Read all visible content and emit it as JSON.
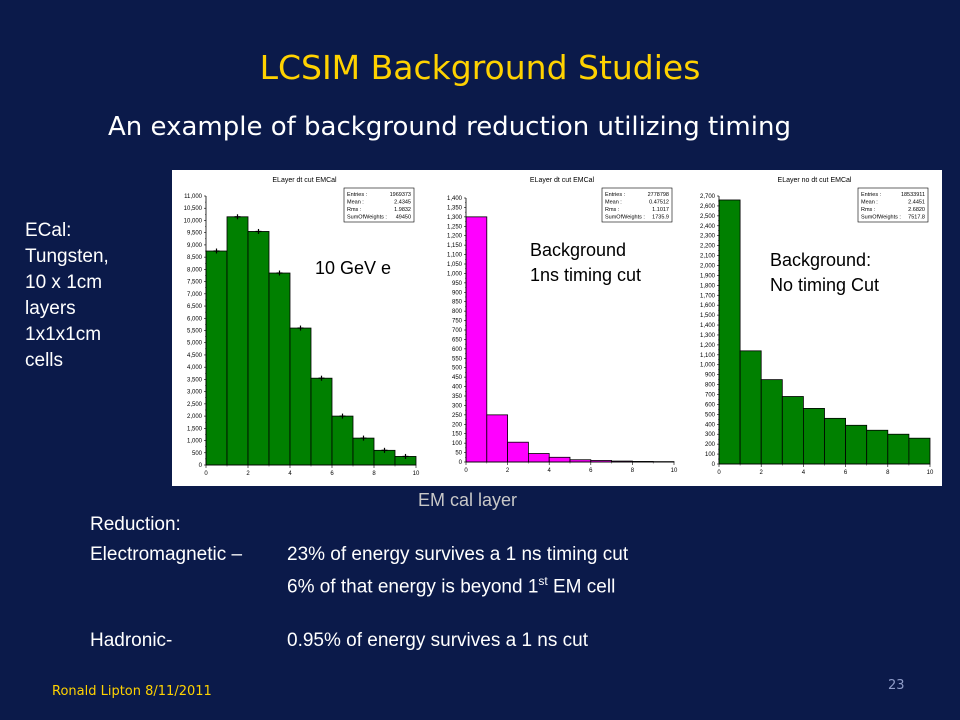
{
  "title": "LCSIM Background Studies",
  "subtitle": "An example of background reduction utilizing timing",
  "ecal_note": [
    "ECal:",
    "Tungsten,",
    "10 x 1cm",
    "layers",
    "1x1x1cm",
    "cells"
  ],
  "x_axis_label": "EM cal layer",
  "reduction": {
    "heading": "Reduction:",
    "em_label": "Electromagnetic –",
    "em_line1": "23% of energy survives a 1 ns timing cut",
    "em_line2_pre": "6% of that energy is beyond 1",
    "em_line2_sup": "st",
    "em_line2_post": " EM cell",
    "had_label": "Hadronic-",
    "had_line": "0.95% of energy survives a 1 ns cut"
  },
  "footer": "Ronald Lipton 8/11/2011",
  "page_number": "23",
  "colors": {
    "background": "#0b1a4a",
    "title": "#ffd200",
    "green_bar": "#008000",
    "magenta_bar": "#ff00ff"
  },
  "chart_data": [
    {
      "type": "bar",
      "title": "ELayer dt cut EMCal",
      "overlay_label": "10 GeV e",
      "bar_color": "#008000",
      "bin_edges": [
        0,
        1,
        2,
        3,
        4,
        5,
        6,
        7,
        8,
        9,
        10
      ],
      "values": [
        8750,
        10150,
        9550,
        7850,
        5600,
        3550,
        2000,
        1100,
        600,
        350
      ],
      "ylim": [
        0,
        11000
      ],
      "y_ticks": [
        "0",
        "500",
        "1,000",
        "1,500",
        "2,000",
        "2,500",
        "3,000",
        "3,500",
        "4,000",
        "4,500",
        "5,000",
        "5,500",
        "6,000",
        "6,500",
        "7,000",
        "7,500",
        "8,000",
        "8,500",
        "9,000",
        "9,500",
        "10,000",
        "10,500",
        "11,000"
      ],
      "y_tick_values": [
        0,
        500,
        1000,
        1500,
        2000,
        2500,
        3000,
        3500,
        4000,
        4500,
        5000,
        5500,
        6000,
        6500,
        7000,
        7500,
        8000,
        8500,
        9000,
        9500,
        10000,
        10500,
        11000
      ],
      "x_ticks": [
        "0",
        "2",
        "4",
        "6",
        "8",
        "10"
      ],
      "x_tick_values": [
        0,
        2,
        4,
        6,
        8,
        10
      ],
      "error_bars": true,
      "stats": [
        {
          "label": "Entries :",
          "value": "1969373"
        },
        {
          "label": "Mean :",
          "value": "2.4345"
        },
        {
          "label": "Rms :",
          "value": "1.9832"
        },
        {
          "label": "SumOfWeights :",
          "value": "49450"
        }
      ]
    },
    {
      "type": "bar",
      "title": "ELayer dt cut EMCal",
      "overlay_label": [
        "Background",
        "1ns timing cut"
      ],
      "bar_color": "#ff00ff",
      "bin_edges": [
        0,
        1,
        2,
        3,
        4,
        5,
        6,
        7,
        8,
        9,
        10
      ],
      "values": [
        1300,
        250,
        105,
        45,
        25,
        12,
        8,
        5,
        3,
        2
      ],
      "ylim": [
        0,
        1400
      ],
      "y_ticks": [
        "0",
        "50",
        "100",
        "150",
        "200",
        "250",
        "300",
        "350",
        "400",
        "450",
        "500",
        "550",
        "600",
        "650",
        "700",
        "750",
        "800",
        "850",
        "900",
        "950",
        "1,000",
        "1,050",
        "1,100",
        "1,150",
        "1,200",
        "1,250",
        "1,300",
        "1,350",
        "1,400"
      ],
      "y_tick_values": [
        0,
        50,
        100,
        150,
        200,
        250,
        300,
        350,
        400,
        450,
        500,
        550,
        600,
        650,
        700,
        750,
        800,
        850,
        900,
        950,
        1000,
        1050,
        1100,
        1150,
        1200,
        1250,
        1300,
        1350,
        1400
      ],
      "x_ticks": [
        "0",
        "2",
        "4",
        "6",
        "8",
        "10"
      ],
      "x_tick_values": [
        0,
        2,
        4,
        6,
        8,
        10
      ],
      "error_bars": false,
      "stats": [
        {
          "label": "Entries :",
          "value": "2778798"
        },
        {
          "label": "Mean :",
          "value": "0.47512"
        },
        {
          "label": "Rms :",
          "value": "1.1017"
        },
        {
          "label": "SumOfWeights :",
          "value": "1735.9"
        }
      ]
    },
    {
      "type": "bar",
      "title": "ELayer no dt cut EMCal",
      "overlay_label": [
        "Background:",
        "No timing Cut"
      ],
      "bar_color": "#008000",
      "bin_edges": [
        0,
        1,
        2,
        3,
        4,
        5,
        6,
        7,
        8,
        9,
        10
      ],
      "values": [
        2660,
        1140,
        850,
        680,
        560,
        460,
        390,
        340,
        300,
        260
      ],
      "ylim": [
        0,
        2700
      ],
      "y_ticks": [
        "0",
        "100",
        "200",
        "300",
        "400",
        "500",
        "600",
        "700",
        "800",
        "900",
        "1,000",
        "1,100",
        "1,200",
        "1,300",
        "1,400",
        "1,500",
        "1,600",
        "1,700",
        "1,800",
        "1,900",
        "2,000",
        "2,100",
        "2,200",
        "2,300",
        "2,400",
        "2,500",
        "2,600",
        "2,700"
      ],
      "y_tick_values": [
        0,
        100,
        200,
        300,
        400,
        500,
        600,
        700,
        800,
        900,
        1000,
        1100,
        1200,
        1300,
        1400,
        1500,
        1600,
        1700,
        1800,
        1900,
        2000,
        2100,
        2200,
        2300,
        2400,
        2500,
        2600,
        2700
      ],
      "x_ticks": [
        "0",
        "2",
        "4",
        "6",
        "8",
        "10"
      ],
      "x_tick_values": [
        0,
        2,
        4,
        6,
        8,
        10
      ],
      "error_bars": false,
      "stats": [
        {
          "label": "Entries :",
          "value": "18533911"
        },
        {
          "label": "Mean :",
          "value": "2.4451"
        },
        {
          "label": "Rms :",
          "value": "2.6820"
        },
        {
          "label": "SumOfWeights :",
          "value": "7517.8"
        }
      ]
    }
  ]
}
